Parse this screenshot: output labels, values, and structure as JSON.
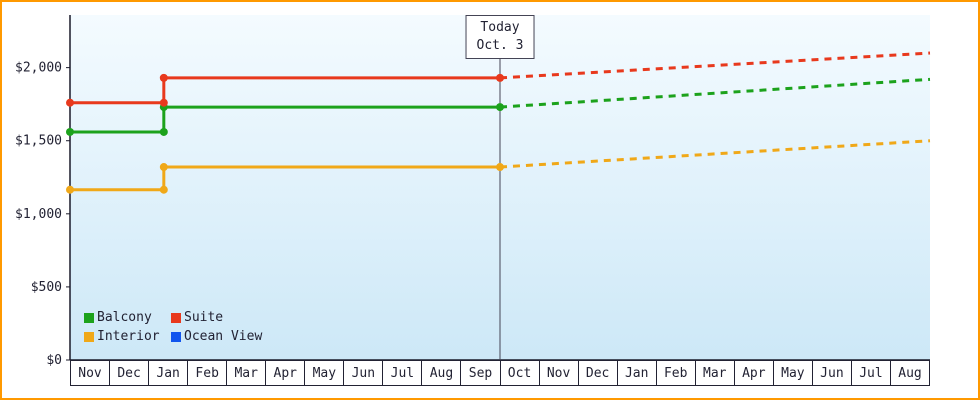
{
  "colors": {
    "panel_border": "#ff9900",
    "plot_bg_top": "#f4fbff",
    "plot_bg_bottom": "#cde8f7",
    "axis": "#1a1a2a",
    "today_line": "#445",
    "text": "#222233"
  },
  "chart_data": {
    "type": "line",
    "x_axis": {
      "months": [
        "Nov",
        "Dec",
        "Jan",
        "Feb",
        "Mar",
        "Apr",
        "May",
        "Jun",
        "Jul",
        "Aug",
        "Sep",
        "Oct",
        "Nov",
        "Dec",
        "Jan",
        "Feb",
        "Mar",
        "Apr",
        "May",
        "Jun",
        "Jul",
        "Aug"
      ]
    },
    "y_axis": {
      "tick_labels": [
        "$0",
        "$500",
        "$1,000",
        "$1,500",
        "$2,000"
      ],
      "tick_values": [
        0,
        500,
        1000,
        1500,
        2000
      ],
      "max_value": 2360
    },
    "today": {
      "label_line1": "Today",
      "label_line2": "Oct. 3",
      "month_index": 11
    },
    "series": [
      {
        "name": "Balcony",
        "color": "#1ca21c",
        "history": [
          {
            "x": 0,
            "y": 1560
          },
          {
            "x": 2.4,
            "y": 1560
          },
          {
            "x": 2.4,
            "y": 1730
          },
          {
            "x": 11,
            "y": 1730
          }
        ],
        "forecast": [
          {
            "x": 11,
            "y": 1730
          },
          {
            "x": 22,
            "y": 1920
          }
        ]
      },
      {
        "name": "Suite",
        "color": "#e8391d",
        "history": [
          {
            "x": 0,
            "y": 1760
          },
          {
            "x": 2.4,
            "y": 1760
          },
          {
            "x": 2.4,
            "y": 1930
          },
          {
            "x": 11,
            "y": 1930
          }
        ],
        "forecast": [
          {
            "x": 11,
            "y": 1930
          },
          {
            "x": 22,
            "y": 2100
          }
        ]
      },
      {
        "name": "Interior",
        "color": "#f0a818",
        "history": [
          {
            "x": 0,
            "y": 1165
          },
          {
            "x": 2.4,
            "y": 1165
          },
          {
            "x": 2.4,
            "y": 1320
          },
          {
            "x": 11,
            "y": 1320
          }
        ],
        "forecast": [
          {
            "x": 11,
            "y": 1320
          },
          {
            "x": 22,
            "y": 1500
          }
        ]
      },
      {
        "name": "Ocean View",
        "color": "#1155ee",
        "history": [],
        "forecast": []
      }
    ]
  }
}
